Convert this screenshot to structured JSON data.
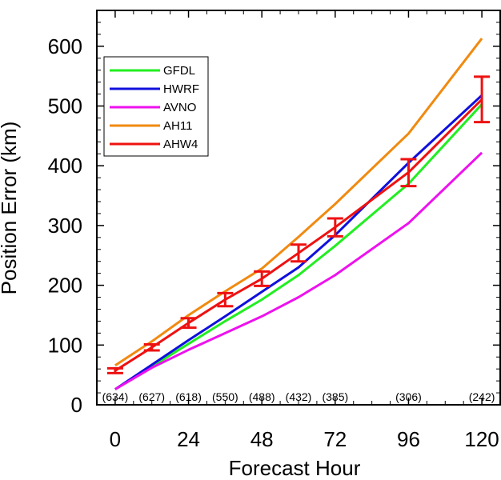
{
  "chart_data": {
    "type": "line",
    "title": "",
    "xlabel": "Forecast Hour",
    "ylabel": "Position Error (km)",
    "xlim": [
      -6,
      126
    ],
    "ylim": [
      0,
      660
    ],
    "xticks": [
      0,
      24,
      48,
      72,
      96,
      120
    ],
    "yticks": [
      0,
      100,
      200,
      300,
      400,
      500,
      600
    ],
    "grid": false,
    "legend_position": "top-left",
    "series": [
      {
        "name": "GFDL",
        "color": "#22ee22",
        "x": [
          0,
          12,
          24,
          36,
          48,
          60,
          72,
          96,
          120
        ],
        "y": [
          26,
          64,
          102,
          140,
          176,
          217,
          266,
          370,
          503
        ]
      },
      {
        "name": "HWRF",
        "color": "#1010dd",
        "x": [
          0,
          12,
          24,
          36,
          48,
          60,
          72,
          96,
          120
        ],
        "y": [
          26,
          67,
          108,
          148,
          189,
          230,
          284,
          405,
          518
        ]
      },
      {
        "name": "AVNO",
        "color": "#ee11ee",
        "x": [
          0,
          12,
          24,
          36,
          48,
          60,
          72,
          96,
          120
        ],
        "y": [
          26,
          62,
          92,
          120,
          148,
          180,
          217,
          304,
          422
        ]
      },
      {
        "name": "AH11",
        "color": "#f08a10",
        "x": [
          0,
          12,
          24,
          36,
          48,
          60,
          72,
          96,
          120
        ],
        "y": [
          66,
          106,
          150,
          190,
          228,
          281,
          336,
          454,
          613
        ]
      },
      {
        "name": "AHW4",
        "color": "#ee1111",
        "x": [
          0,
          12,
          24,
          36,
          48,
          60,
          72,
          96,
          120
        ],
        "y": [
          57,
          96,
          137,
          176,
          211,
          254,
          297,
          389,
          511
        ],
        "error_low": [
          53,
          91,
          129,
          165,
          199,
          240,
          282,
          366,
          473
        ],
        "error_high": [
          61,
          101,
          145,
          187,
          223,
          268,
          312,
          411,
          549
        ]
      }
    ],
    "sample_counts": [
      {
        "x": 0,
        "label": "(634)"
      },
      {
        "x": 12,
        "label": "(627)"
      },
      {
        "x": 24,
        "label": "(618)"
      },
      {
        "x": 36,
        "label": "(550)"
      },
      {
        "x": 48,
        "label": "(488)"
      },
      {
        "x": 60,
        "label": "(432)"
      },
      {
        "x": 72,
        "label": "(385)"
      },
      {
        "x": 96,
        "label": "(306)"
      },
      {
        "x": 120,
        "label": "(242)"
      }
    ]
  }
}
